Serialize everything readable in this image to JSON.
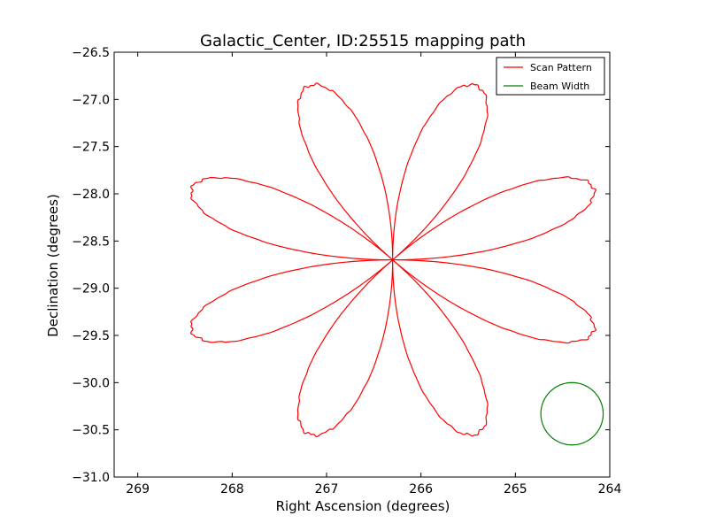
{
  "chart_data": {
    "type": "line",
    "title": "Galactic_Center, ID:25515 mapping path",
    "xlabel": "Right Ascension (degrees)",
    "ylabel": "Declination (degrees)",
    "xlim": [
      269.25,
      264.0
    ],
    "ylim": [
      -31.0,
      -26.5
    ],
    "x_ticks": [
      {
        "value": 269,
        "label": "269"
      },
      {
        "value": 268,
        "label": "268"
      },
      {
        "value": 267,
        "label": "267"
      },
      {
        "value": 266,
        "label": "266"
      },
      {
        "value": 265,
        "label": "265"
      },
      {
        "value": 264,
        "label": "264"
      }
    ],
    "y_ticks": [
      {
        "value": -26.5,
        "label": "−26.5"
      },
      {
        "value": -27.0,
        "label": "−27.0"
      },
      {
        "value": -27.5,
        "label": "−27.5"
      },
      {
        "value": -28.0,
        "label": "−28.0"
      },
      {
        "value": -28.5,
        "label": "−28.5"
      },
      {
        "value": -29.0,
        "label": "−29.0"
      },
      {
        "value": -29.5,
        "label": "−29.5"
      },
      {
        "value": -30.0,
        "label": "−30.0"
      },
      {
        "value": -30.5,
        "label": "−30.5"
      },
      {
        "value": -31.0,
        "label": "−31.0"
      }
    ],
    "grid": false,
    "legend_position": "top-right",
    "series": [
      {
        "name": "Scan Pattern",
        "kind": "rose-curve",
        "petals": 8,
        "center": {
          "ra": 266.3,
          "dec": -28.7
        },
        "extent": {
          "ra": 2.3,
          "dec": 2.0
        },
        "color": "#ff0000"
      },
      {
        "name": "Beam Width",
        "kind": "circle",
        "center": {
          "ra": 264.4,
          "dec": -30.33
        },
        "radius": {
          "ra": 0.33,
          "dec": 0.33
        },
        "color": "#008000"
      }
    ]
  }
}
